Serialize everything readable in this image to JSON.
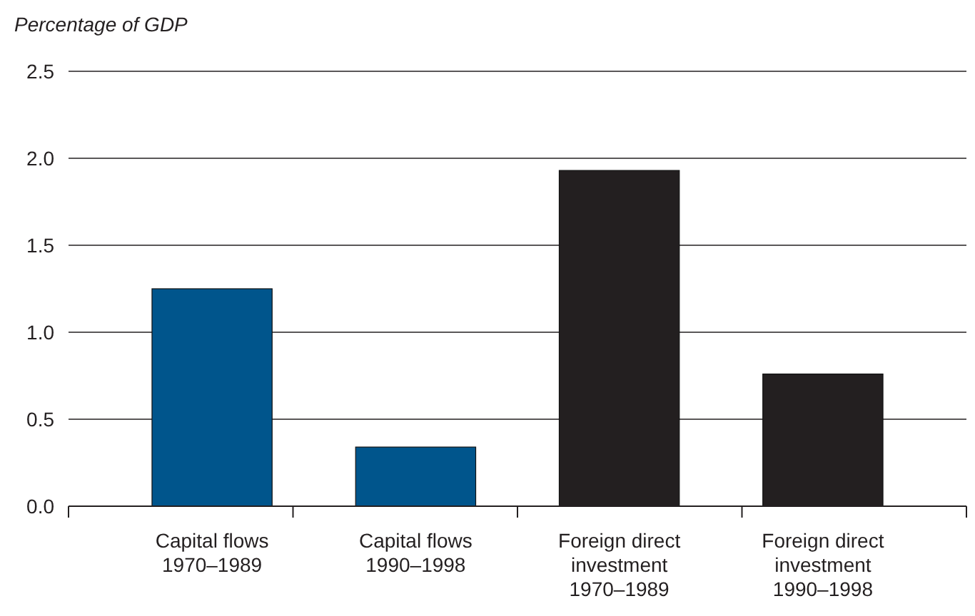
{
  "chart_data": {
    "type": "bar",
    "ylabel": "Percentage of GDP",
    "categories": [
      "Capital flows\n1970–1989",
      "Capital flows\n1990–1998",
      "Foreign direct\ninvestment\n1970–1989",
      "Foreign direct\ninvestment\n1990–1998"
    ],
    "values": [
      1.25,
      0.34,
      1.93,
      0.76
    ],
    "colors": [
      "#00558c",
      "#00558c",
      "#231f20",
      "#231f20"
    ],
    "ylim": [
      0,
      2.5
    ],
    "yticks": [
      {
        "value": 0,
        "label": "0.0"
      },
      {
        "value": 0.5,
        "label": "0.5"
      },
      {
        "value": 1,
        "label": "1.0"
      },
      {
        "value": 1.5,
        "label": "1.5"
      },
      {
        "value": 2,
        "label": "2.0"
      },
      {
        "value": 2.5,
        "label": "2.5"
      }
    ],
    "grid": "y"
  }
}
